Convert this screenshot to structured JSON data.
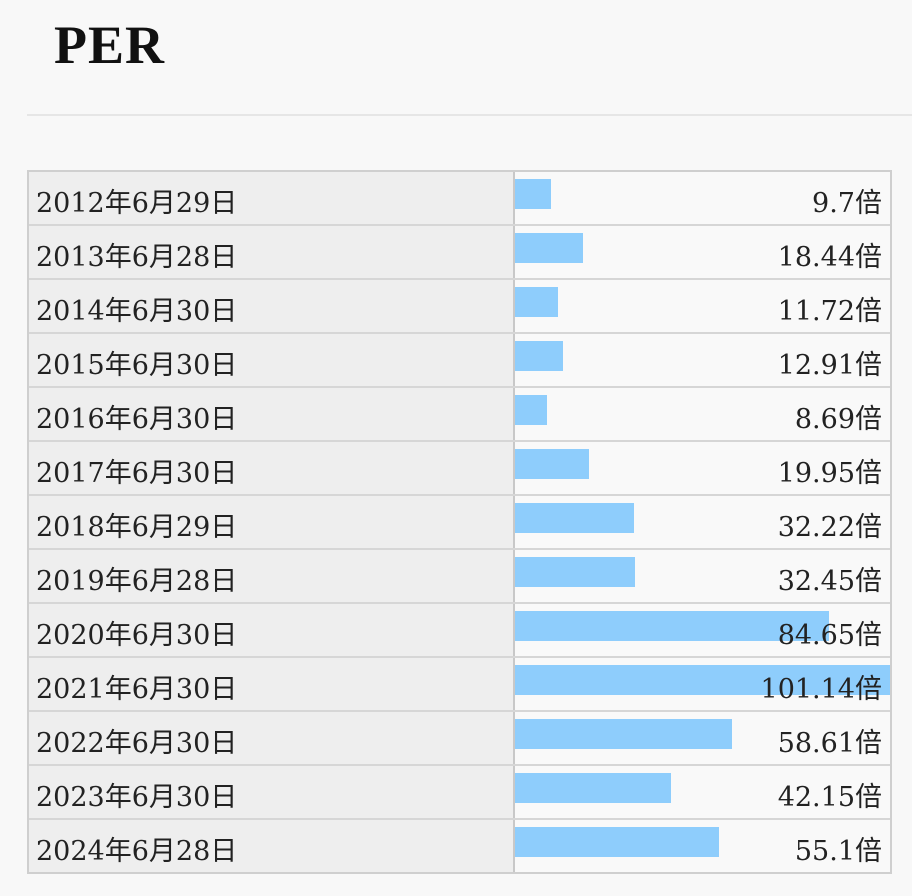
{
  "page": {
    "title": "PER"
  },
  "chart_data": {
    "type": "bar",
    "orientation": "horizontal",
    "unit": "倍",
    "xlim": [
      0,
      101.14
    ],
    "bar_color": "#8ecdfc",
    "categories": [
      "2012年6月29日",
      "2013年6月28日",
      "2014年6月30日",
      "2015年6月30日",
      "2016年6月30日",
      "2017年6月30日",
      "2018年6月29日",
      "2019年6月28日",
      "2020年6月30日",
      "2021年6月30日",
      "2022年6月30日",
      "2023年6月30日",
      "2024年6月28日"
    ],
    "values": [
      9.7,
      18.44,
      11.72,
      12.91,
      8.69,
      19.95,
      32.22,
      32.45,
      84.65,
      101.14,
      58.61,
      42.15,
      55.1
    ],
    "labels": [
      "9.7倍",
      "18.44倍",
      "11.72倍",
      "12.91倍",
      "8.69倍",
      "19.95倍",
      "32.22倍",
      "32.45倍",
      "84.65倍",
      "101.14倍",
      "58.61倍",
      "42.15倍",
      "55.1倍"
    ]
  }
}
